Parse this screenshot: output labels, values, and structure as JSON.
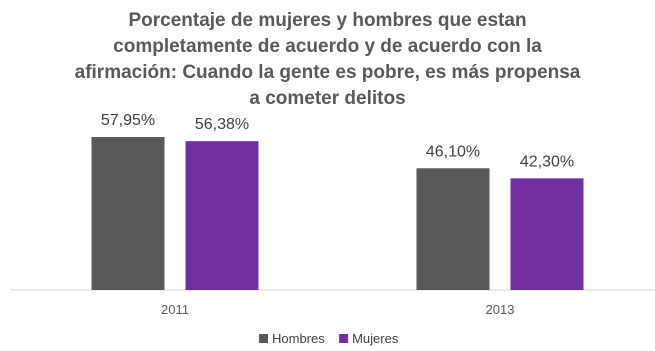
{
  "chart_data": {
    "type": "bar",
    "title": "Porcentaje de mujeres y hombres que estan\ncompletamente de acuerdo y de acuerdo con la\nafirmación: Cuando la gente es pobre, es más propensa\na cometer delitos",
    "categories": [
      "2011",
      "2013"
    ],
    "series": [
      {
        "name": "Hombres",
        "values": [
          57.95,
          46.1
        ],
        "labels": [
          "57,95%",
          "46,10%"
        ],
        "color": "#595959"
      },
      {
        "name": "Mujeres",
        "values": [
          56.38,
          42.3
        ],
        "labels": [
          "56,38%",
          "42,30%"
        ],
        "color": "#7030A0"
      }
    ],
    "ylim": [
      0,
      75
    ],
    "grid": false,
    "legend_position": "bottom"
  }
}
